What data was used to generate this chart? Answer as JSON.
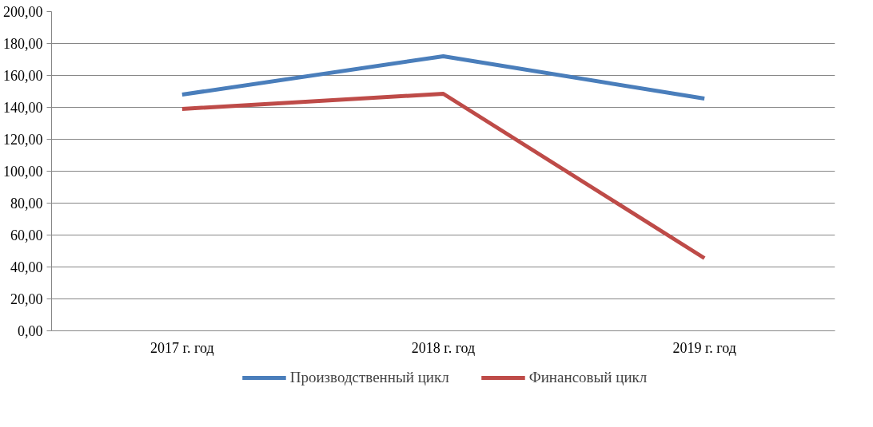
{
  "chart_data": {
    "type": "line",
    "categories": [
      "2017 г. год",
      "2018 г. год",
      "2019 г. год"
    ],
    "series": [
      {
        "name": "Производственный цикл",
        "color": "#4a7ebb",
        "values": [
          148,
          172,
          145.5
        ]
      },
      {
        "name": "Финансовый цикл",
        "color": "#be4b48",
        "values": [
          139,
          148.5,
          45.5
        ]
      }
    ],
    "ylim": [
      0,
      200
    ],
    "yticks": [
      {
        "value": 0,
        "label": "0,00"
      },
      {
        "value": 20,
        "label": "20,00"
      },
      {
        "value": 40,
        "label": "40,00"
      },
      {
        "value": 60,
        "label": "60,00"
      },
      {
        "value": 80,
        "label": "80,00"
      },
      {
        "value": 100,
        "label": "100,00"
      },
      {
        "value": 120,
        "label": "120,00"
      },
      {
        "value": 140,
        "label": "140,00"
      },
      {
        "value": 160,
        "label": "160,00"
      },
      {
        "value": 180,
        "label": "180,00"
      },
      {
        "value": 200,
        "label": "200,00"
      }
    ],
    "grid": "y",
    "legend": "bottom",
    "marker": "none",
    "line_style": "solid"
  }
}
